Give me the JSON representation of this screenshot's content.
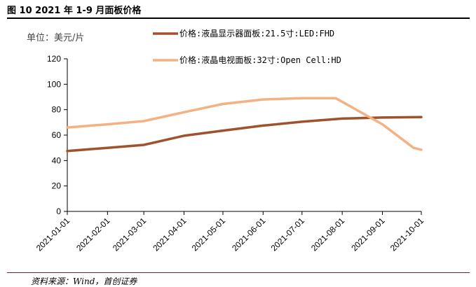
{
  "figure": {
    "title": "图 10 2021 年 1-9 月面板价格",
    "source": "资料来源：Wind，首创证券"
  },
  "chart_data": {
    "type": "line",
    "unit_label": "单位：美元/片",
    "categories": [
      "2021-01-01",
      "2021-02-01",
      "2021-03-01",
      "2021-04-01",
      "2021-05-01",
      "2021-06-01",
      "2021-07-01",
      "2021-08-01",
      "2021-09-01",
      "2021-10-01"
    ],
    "ylim": [
      0,
      120
    ],
    "yticks": [
      0,
      20,
      40,
      60,
      80,
      100,
      120
    ],
    "grid": false,
    "legend_position": "top",
    "series": [
      {
        "name": "价格:液晶显示器面板:21.5寸:LED:FHD",
        "color": "#a0522d",
        "points": [
          [
            "2021-01-01",
            47.5
          ],
          [
            "2021-02-01",
            50
          ],
          [
            "2021-03-01",
            52.3
          ],
          [
            "2021-04-01",
            59.5
          ],
          [
            "2021-05-01",
            63.5
          ],
          [
            "2021-06-01",
            67.5
          ],
          [
            "2021-07-01",
            70.5
          ],
          [
            "2021-08-01",
            73
          ],
          [
            "2021-09-01",
            73.8
          ],
          [
            "2021-10-01",
            74.2
          ]
        ]
      },
      {
        "name": "价格:液晶电视面板:32寸:Open Cell:HD",
        "color": "#f4b183",
        "points": [
          [
            "2021-01-01",
            66
          ],
          [
            "2021-02-01",
            68.5
          ],
          [
            "2021-03-01",
            71
          ],
          [
            "2021-04-01",
            78
          ],
          [
            "2021-05-01",
            84.5
          ],
          [
            "2021-06-01",
            88
          ],
          [
            "2021-07-01",
            89
          ],
          [
            "2021-07-27",
            89
          ],
          [
            "2021-09-01",
            68.5
          ],
          [
            "2021-09-25",
            50
          ],
          [
            "2021-10-01",
            48.5
          ]
        ]
      }
    ]
  }
}
